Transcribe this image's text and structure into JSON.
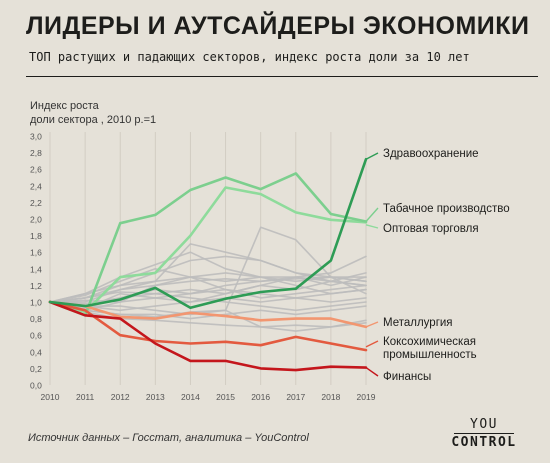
{
  "header": {
    "title": "ЛИДЕРЫ И АУТСАЙДЕРЫ ЭКОНОМИКИ",
    "subtitle": "ТОП растущих и падающих секторов, индекс роста доли за 10 лет"
  },
  "footer": {
    "source": "Источник данных – Госстат, аналитика – YouControl"
  },
  "logo": {
    "line1": "YOU",
    "line2": "CONTROL"
  },
  "colors": {
    "background": "#e5e1d8",
    "gray": "#bdbdbd",
    "health": "#2e9c55",
    "tobacco": "#7ccf8e",
    "wholesale": "#8edb9b",
    "metallurgy": "#f29670",
    "coke": "#e35a3f",
    "finance": "#c4161c"
  },
  "chart_data": {
    "type": "line",
    "ylabel": [
      "Индекс роста",
      "доли сектора , 2010 р.=1"
    ],
    "x": [
      "2010",
      "2011",
      "2012",
      "2013",
      "2014",
      "2015",
      "2016",
      "2017",
      "2018",
      "2019"
    ],
    "ylim": [
      0,
      3.0
    ],
    "yticks": [
      "0,0",
      "0,2",
      "0,4",
      "0,6",
      "0,8",
      "1,0",
      "1,2",
      "1,4",
      "1,6",
      "1,8",
      "2,0",
      "2,2",
      "2,4",
      "2,6",
      "2,8",
      "3,0"
    ],
    "grid": "vertical",
    "background_series": [
      [
        1.0,
        1.05,
        1.12,
        1.1,
        1.15,
        1.1,
        1.2,
        1.15,
        1.25,
        1.2
      ],
      [
        1.0,
        0.95,
        1.05,
        1.15,
        1.1,
        1.2,
        1.25,
        1.3,
        1.2,
        1.3
      ],
      [
        1.0,
        0.9,
        1.0,
        1.2,
        1.3,
        1.25,
        1.3,
        1.25,
        1.3,
        1.25
      ],
      [
        1.0,
        1.1,
        1.3,
        1.45,
        1.6,
        1.4,
        1.3,
        1.2,
        1.1,
        1.15
      ],
      [
        1.0,
        1.05,
        1.2,
        1.35,
        1.5,
        1.55,
        1.5,
        1.35,
        1.25,
        1.2
      ],
      [
        1.0,
        1.0,
        1.15,
        1.25,
        1.7,
        1.6,
        1.5,
        1.35,
        1.3,
        1.25
      ],
      [
        1.0,
        0.95,
        0.95,
        0.9,
        0.85,
        0.9,
        1.9,
        1.75,
        1.3,
        1.1
      ],
      [
        1.0,
        0.92,
        1.1,
        1.05,
        1.0,
        1.1,
        1.2,
        1.3,
        1.35,
        1.55
      ],
      [
        1.0,
        1.02,
        1.0,
        1.05,
        1.1,
        1.15,
        1.1,
        1.05,
        1.1,
        1.15
      ],
      [
        1.0,
        0.95,
        0.9,
        0.95,
        1.0,
        1.05,
        1.0,
        1.05,
        1.0,
        1.05
      ],
      [
        1.0,
        0.9,
        0.85,
        0.85,
        0.8,
        0.85,
        0.9,
        0.85,
        0.9,
        0.95
      ],
      [
        1.0,
        0.88,
        0.8,
        0.78,
        0.75,
        0.72,
        0.7,
        0.72,
        0.7,
        0.75
      ],
      [
        1.0,
        0.9,
        0.85,
        0.82,
        0.88,
        0.9,
        0.7,
        0.65,
        0.7,
        0.78
      ],
      [
        1.0,
        1.1,
        1.2,
        1.25,
        1.3,
        1.35,
        1.3,
        1.3,
        1.25,
        1.35
      ],
      [
        1.0,
        1.05,
        1.15,
        1.2,
        1.25,
        1.28,
        1.25,
        1.28,
        1.3,
        1.3
      ],
      [
        1.0,
        0.98,
        1.05,
        1.1,
        1.05,
        1.0,
        0.95,
        0.9,
        0.95,
        1.0
      ],
      [
        1.0,
        1.08,
        1.25,
        1.4,
        1.3,
        1.15,
        1.05,
        1.1,
        1.15,
        1.2
      ]
    ],
    "series": [
      {
        "name": "Здравоохранение",
        "color": "#2e9c55",
        "values": [
          1.0,
          0.95,
          1.03,
          1.17,
          0.93,
          1.04,
          1.12,
          1.16,
          1.5,
          2.72
        ]
      },
      {
        "name": "Табачное производство",
        "color": "#7ccf8e",
        "values": [
          1.0,
          0.84,
          1.95,
          2.05,
          2.35,
          2.5,
          2.36,
          2.55,
          2.06,
          1.97
        ]
      },
      {
        "name": "Оптовая торговля",
        "color": "#8edb9b",
        "values": [
          1.0,
          0.88,
          1.3,
          1.35,
          1.8,
          2.38,
          2.3,
          2.08,
          1.99,
          1.96
        ]
      },
      {
        "name": "Металлургия",
        "color": "#f29670",
        "values": [
          1.0,
          0.95,
          0.82,
          0.8,
          0.87,
          0.83,
          0.78,
          0.8,
          0.8,
          0.7
        ]
      },
      {
        "name": "Коксохимическая промышленность",
        "color": "#e35a3f",
        "values": [
          1.0,
          0.9,
          0.6,
          0.53,
          0.5,
          0.52,
          0.48,
          0.58,
          0.5,
          0.42
        ]
      },
      {
        "name": "Финансы",
        "color": "#c4161c",
        "values": [
          1.0,
          0.84,
          0.8,
          0.5,
          0.29,
          0.29,
          0.2,
          0.18,
          0.22,
          0.21
        ]
      }
    ],
    "labels": [
      {
        "lines": [
          "Здравоохранение"
        ]
      },
      {
        "lines": [
          "Табачное производство"
        ]
      },
      {
        "lines": [
          "Оптовая торговля"
        ]
      },
      {
        "lines": [
          "Металлургия"
        ]
      },
      {
        "lines": [
          "Коксохимическая",
          "промышленность"
        ]
      },
      {
        "lines": [
          "Финансы"
        ]
      }
    ]
  }
}
